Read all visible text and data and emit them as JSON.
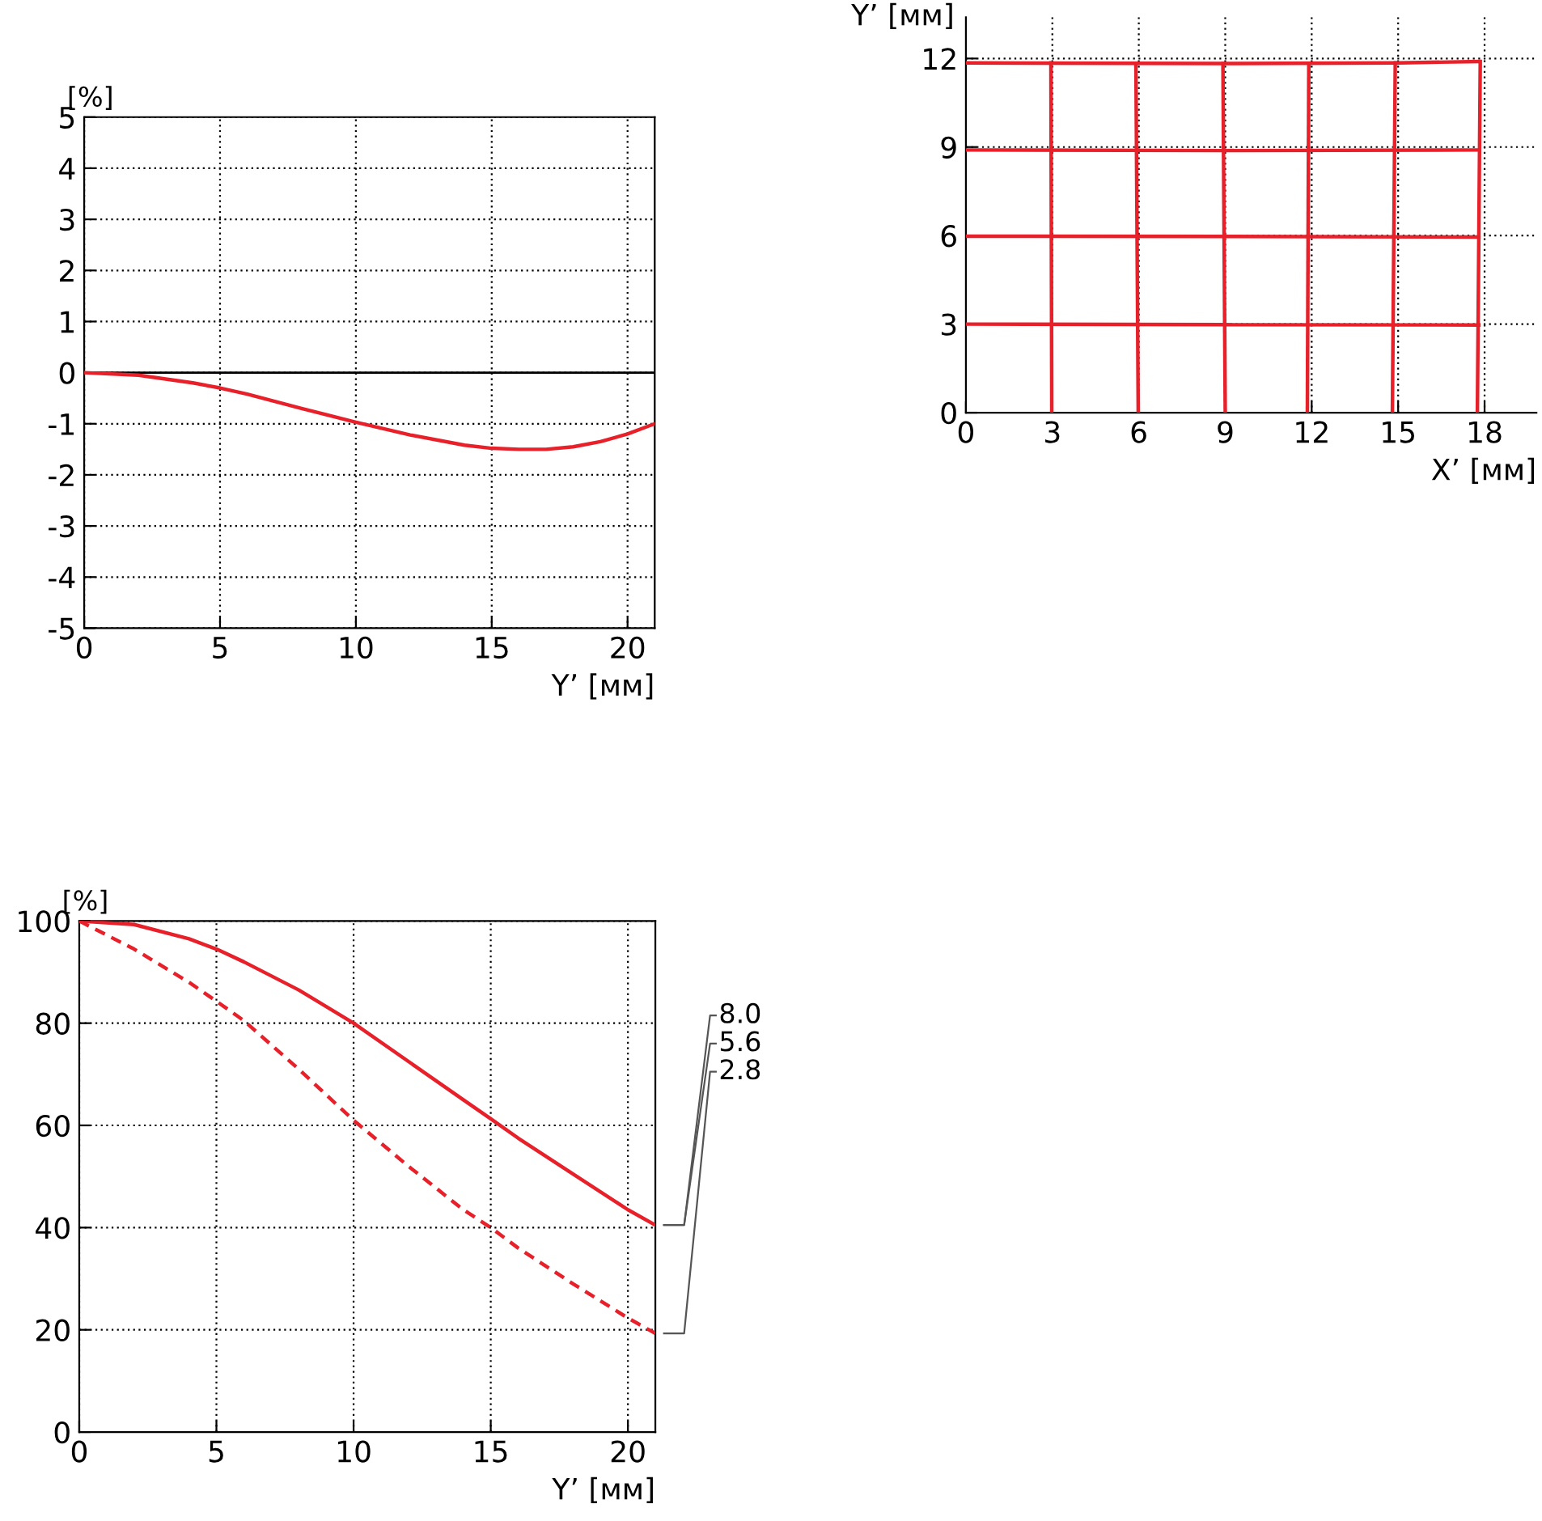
{
  "chart_data": [
    {
      "type": "line",
      "xlabel": "Y’ [мм]",
      "ylabel": "[%]",
      "xlim": [
        0,
        21
      ],
      "ylim": [
        -5,
        5
      ],
      "xticks": [
        0,
        5,
        10,
        15,
        20
      ],
      "yticks": [
        -5,
        -4,
        -3,
        -2,
        -1,
        0,
        1,
        2,
        3,
        4,
        5
      ],
      "grid": true,
      "legend": false,
      "ref_lines": [
        {
          "axis": "y",
          "value": 0,
          "color": "#000000",
          "line_style": "solid"
        }
      ],
      "series": [
        {
          "color": "#e8202a",
          "x": [
            0,
            2,
            4,
            5,
            6,
            8,
            10,
            12,
            14,
            15,
            16,
            17,
            18,
            19,
            20,
            21
          ],
          "values": [
            0,
            -0.05,
            -0.2,
            -0.3,
            -0.42,
            -0.7,
            -0.97,
            -1.22,
            -1.42,
            -1.48,
            -1.5,
            -1.5,
            -1.45,
            -1.35,
            -1.2,
            -1.0
          ],
          "line_style": "solid"
        }
      ]
    },
    {
      "type": "line",
      "xlabel": "X’ [мм]",
      "ylabel": "Y’ [мм]",
      "xlim": [
        0,
        19.8
      ],
      "ylim": [
        0,
        13.4
      ],
      "xticks": [
        0,
        3,
        6,
        9,
        12,
        15,
        18
      ],
      "yticks": [
        0,
        3,
        6,
        9,
        12
      ],
      "grid": true,
      "legend": false,
      "series": [
        {
          "color": "#e8202a",
          "x": [
            0,
            9,
            15,
            17.8
          ],
          "values": [
            11.85,
            11.83,
            11.85,
            11.9
          ],
          "line_style": "solid"
        },
        {
          "color": "#e8202a",
          "x": [
            0,
            9,
            17.8
          ],
          "values": [
            8.9,
            8.88,
            8.9
          ],
          "line_style": "solid"
        },
        {
          "color": "#e8202a",
          "x": [
            0,
            9,
            17.8
          ],
          "values": [
            5.98,
            5.97,
            5.95
          ],
          "line_style": "solid"
        },
        {
          "color": "#e8202a",
          "x": [
            0,
            9,
            17.8
          ],
          "values": [
            3.0,
            2.98,
            2.97
          ],
          "line_style": "solid"
        },
        {
          "color": "#e8202a",
          "x": [
            2.98,
            2.95
          ],
          "values": [
            0,
            11.85
          ],
          "line_style": "solid"
        },
        {
          "color": "#e8202a",
          "x": [
            5.98,
            5.9
          ],
          "values": [
            0,
            11.83
          ],
          "line_style": "solid"
        },
        {
          "color": "#e8202a",
          "x": [
            9.0,
            8.92
          ],
          "values": [
            0,
            11.83
          ],
          "line_style": "solid"
        },
        {
          "color": "#e8202a",
          "x": [
            11.85,
            11.9
          ],
          "values": [
            0,
            11.83
          ],
          "line_style": "solid"
        },
        {
          "color": "#e8202a",
          "x": [
            14.8,
            14.9
          ],
          "values": [
            0,
            11.85
          ],
          "line_style": "solid"
        },
        {
          "color": "#e8202a",
          "x": [
            17.75,
            17.85
          ],
          "values": [
            0,
            11.9
          ],
          "line_style": "solid"
        }
      ]
    },
    {
      "type": "line",
      "xlabel": "Y’ [мм]",
      "ylabel": "[%]",
      "xlim": [
        0,
        21
      ],
      "ylim": [
        0,
        100
      ],
      "xticks": [
        0,
        5,
        10,
        15,
        20
      ],
      "yticks": [
        0,
        20,
        40,
        60,
        80,
        100
      ],
      "grid": true,
      "legend": false,
      "annotations": [
        {
          "text": "5.6",
          "x": 21,
          "y": 40.5
        }
      ],
      "series": [
        {
          "name": "8.0",
          "color": "#e8202a",
          "x": [
            0,
            2,
            4,
            5,
            6,
            8,
            10,
            12,
            14,
            15,
            16,
            18,
            20,
            21
          ],
          "values": [
            100,
            99.3,
            96.5,
            94.5,
            92,
            86.5,
            80,
            72.5,
            65,
            61.3,
            57.5,
            50.5,
            43.5,
            40.5
          ],
          "line_style": "solid"
        },
        {
          "name": "2.8",
          "color": "#e8202a",
          "x": [
            0,
            2,
            4,
            5,
            6,
            8,
            10,
            12,
            14,
            15,
            16,
            18,
            20,
            21
          ],
          "values": [
            100,
            94.5,
            88,
            84.3,
            80.5,
            71,
            61,
            52,
            43.5,
            40,
            36,
            29,
            22.3,
            19.3
          ],
          "line_style": "dashed"
        }
      ]
    }
  ]
}
